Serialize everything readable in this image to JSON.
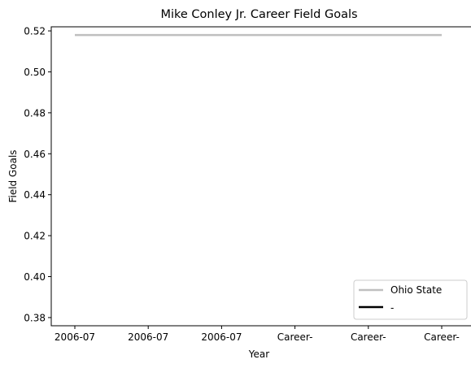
{
  "chart_data": {
    "type": "line",
    "title": "Mike Conley Jr. Career Field Goals",
    "xlabel": "Year",
    "ylabel": "Field Goals",
    "x_tick_labels": [
      "2006-07",
      "2006-07",
      "2006-07",
      "Career-",
      "Career-",
      "Career-"
    ],
    "yticks": [
      0.38,
      0.4,
      0.42,
      0.44,
      0.46,
      0.48,
      0.5,
      0.52
    ],
    "ylim": [
      0.376,
      0.522
    ],
    "grid": false,
    "legend_position": "lower-right",
    "series": [
      {
        "name": "Ohio State",
        "color": "#bfbfbf",
        "values": [
          0.518,
          0.518,
          0.518,
          0.518,
          0.518,
          0.518
        ]
      },
      {
        "name": "-",
        "color": "#000000",
        "values": []
      }
    ]
  }
}
